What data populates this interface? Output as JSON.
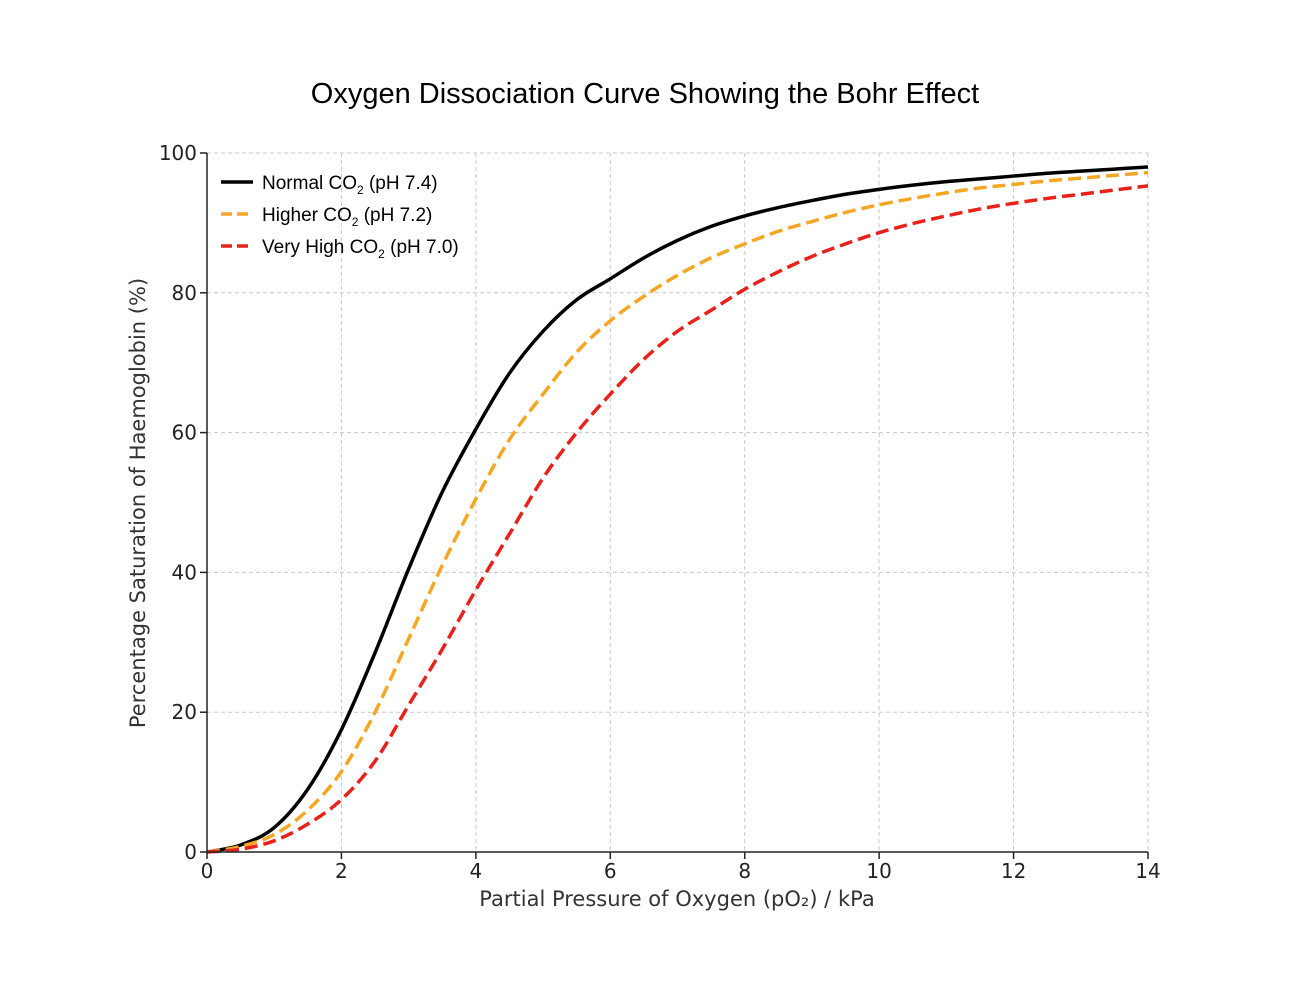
{
  "chart_data": {
    "type": "line",
    "title": "Oxygen Dissociation Curve Showing the Bohr Effect",
    "xlabel": "Partial Pressure of Oxygen (pO₂) / kPa",
    "ylabel": "Percentage Saturation of Haemoglobin (%)",
    "xlim": [
      0,
      14
    ],
    "ylim": [
      0,
      100
    ],
    "xticks": [
      0,
      2,
      4,
      6,
      8,
      10,
      12,
      14
    ],
    "yticks": [
      0,
      20,
      40,
      60,
      80,
      100
    ],
    "grid": true,
    "legend_position": "top-left",
    "x": [
      0,
      0.5,
      1,
      1.5,
      2,
      2.5,
      3,
      3.5,
      4,
      4.5,
      5,
      5.5,
      6,
      6.5,
      7,
      7.5,
      8,
      8.5,
      9,
      9.5,
      10,
      10.5,
      11,
      11.5,
      12,
      12.5,
      13,
      13.5,
      14
    ],
    "series": [
      {
        "name_main": "Normal CO",
        "name_sub": "2",
        "name_tail": " (pH 7.4)",
        "color": "#000000",
        "dashed": false,
        "values": [
          0,
          1.0,
          3.5,
          9.0,
          17.5,
          28.5,
          40.5,
          51.5,
          60.5,
          68.5,
          74.5,
          79.0,
          82.0,
          85.0,
          87.5,
          89.5,
          91.0,
          92.2,
          93.2,
          94.1,
          94.8,
          95.4,
          95.9,
          96.3,
          96.7,
          97.1,
          97.4,
          97.7,
          98.0
        ]
      },
      {
        "name_main": "Higher CO",
        "name_sub": "2",
        "name_tail": " (pH 7.2)",
        "color": "#f5a623",
        "dashed": true,
        "values": [
          0,
          0.8,
          2.5,
          6.0,
          11.5,
          20.0,
          30.5,
          41.0,
          50.5,
          59.0,
          65.5,
          71.5,
          76.0,
          79.5,
          82.5,
          85.0,
          87.0,
          88.8,
          90.2,
          91.5,
          92.6,
          93.5,
          94.3,
          95.0,
          95.5,
          96.0,
          96.4,
          96.8,
          97.2
        ]
      },
      {
        "name_main": "Very High CO",
        "name_sub": "2",
        "name_tail": " (pH 7.0)",
        "color": "#e8211a",
        "dashed": true,
        "values": [
          0,
          0.4,
          1.6,
          4.0,
          7.5,
          13.0,
          21.0,
          29.0,
          37.5,
          45.5,
          53.5,
          60.0,
          65.5,
          70.5,
          74.5,
          77.5,
          80.5,
          83.0,
          85.2,
          87.0,
          88.6,
          89.9,
          91.0,
          92.0,
          92.8,
          93.5,
          94.1,
          94.7,
          95.3
        ]
      }
    ]
  }
}
